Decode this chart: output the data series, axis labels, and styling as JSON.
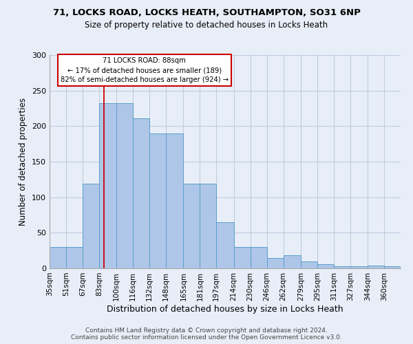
{
  "title1": "71, LOCKS ROAD, LOCKS HEATH, SOUTHAMPTON, SO31 6NP",
  "title2": "Size of property relative to detached houses in Locks Heath",
  "xlabel": "Distribution of detached houses by size in Locks Heath",
  "ylabel": "Number of detached properties",
  "footer1": "Contains HM Land Registry data © Crown copyright and database right 2024.",
  "footer2": "Contains public sector information licensed under the Open Government Licence v3.0.",
  "categories": [
    "35sqm",
    "51sqm",
    "67sqm",
    "83sqm",
    "100sqm",
    "116sqm",
    "132sqm",
    "148sqm",
    "165sqm",
    "181sqm",
    "197sqm",
    "214sqm",
    "230sqm",
    "246sqm",
    "262sqm",
    "279sqm",
    "295sqm",
    "311sqm",
    "327sqm",
    "344sqm",
    "360sqm"
  ],
  "bin_edges": [
    35,
    51,
    67,
    83,
    100,
    116,
    132,
    148,
    165,
    181,
    197,
    214,
    230,
    246,
    262,
    279,
    295,
    311,
    327,
    344,
    360,
    376
  ],
  "bar_heights": [
    30,
    30,
    119,
    232,
    232,
    211,
    190,
    190,
    119,
    119,
    65,
    30,
    30,
    15,
    18,
    10,
    6,
    3,
    3,
    4,
    3
  ],
  "bar_color": "#aec6e8",
  "bar_edge_color": "#5b9ec9",
  "annotation_line1": "71 LOCKS ROAD: 88sqm",
  "annotation_line2": "← 17% of detached houses are smaller (189)",
  "annotation_line3": "82% of semi-detached houses are larger (924) →",
  "vline_x": 88,
  "vline_color": "#cc0000",
  "annotation_box_facecolor": "white",
  "annotation_box_edgecolor": "#cc0000",
  "background_color": "#e8eef8",
  "grid_color": "#c0cce0",
  "ylim": [
    0,
    300
  ],
  "yticks": [
    0,
    50,
    100,
    150,
    200,
    250,
    300
  ]
}
